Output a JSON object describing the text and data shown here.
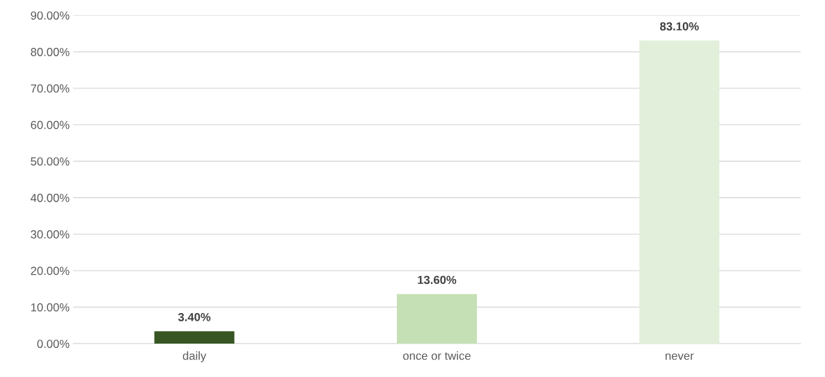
{
  "chart_data": {
    "type": "bar",
    "categories": [
      "daily",
      "once or twice",
      "never"
    ],
    "values": [
      3.4,
      13.6,
      83.1
    ],
    "colors": [
      "#375623",
      "#c5e0b4",
      "#e2efda"
    ],
    "value_labels": [
      "3.40%",
      "13.60%",
      "83.10%"
    ],
    "ylim": [
      0,
      90
    ],
    "yticks": [
      {
        "value": 0,
        "label": "0.00%"
      },
      {
        "value": 10,
        "label": "10.00%"
      },
      {
        "value": 20,
        "label": "20.00%"
      },
      {
        "value": 30,
        "label": "30.00%"
      },
      {
        "value": 40,
        "label": "40.00%"
      },
      {
        "value": 50,
        "label": "50.00%"
      },
      {
        "value": 60,
        "label": "60.00%"
      },
      {
        "value": 70,
        "label": "70.00%"
      },
      {
        "value": 80,
        "label": "80.00%"
      },
      {
        "value": 90,
        "label": "90.00%"
      }
    ],
    "grid": "y",
    "legend": false
  }
}
